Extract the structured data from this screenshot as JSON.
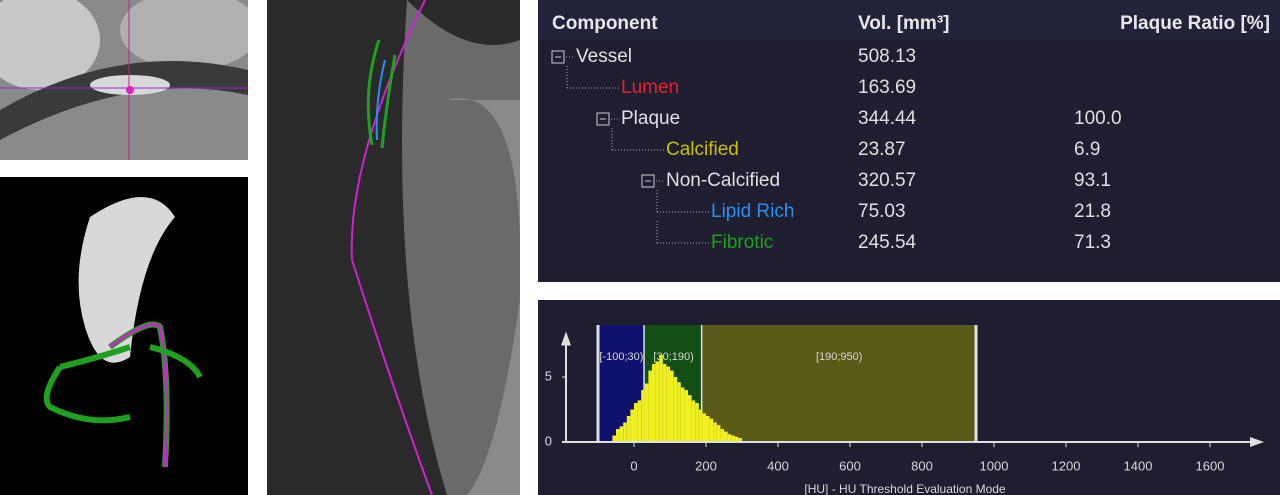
{
  "table": {
    "headers": [
      "Component",
      "Vol. [mm³]",
      "Plaque Ratio [%]"
    ],
    "rows": [
      {
        "name": "Vessel",
        "color": "#e0e0e0",
        "volume": "508.13"
      },
      {
        "name": "Lumen",
        "color": "#e8202a",
        "volume": "163.69"
      },
      {
        "name": "Plaque",
        "color": "#e0e0e0",
        "volume": "344.44",
        "ratio": "100.0"
      },
      {
        "name": "Calcified",
        "color": "#c8c000",
        "volume": "23.87",
        "ratio": "6.9"
      },
      {
        "name": "Non-Calcified",
        "color": "#e0e0e0",
        "volume": "320.57",
        "ratio": "93.1"
      },
      {
        "name": "Lipid Rich",
        "color": "#2a8ef0",
        "volume": "75.03",
        "ratio": "21.8"
      },
      {
        "name": "Fibrotic",
        "color": "#1fa020",
        "volume": "245.54",
        "ratio": "71.3"
      }
    ]
  },
  "chart_data": {
    "type": "histogram",
    "x_label": "[HU] - HU Threshold Evaluation Mode",
    "xlim": [
      -200,
      1750
    ],
    "ylim": [
      0,
      8.5
    ],
    "xticks": [
      0,
      200,
      400,
      600,
      800,
      1000,
      1200,
      1400,
      1600
    ],
    "yticks": [
      0,
      5
    ],
    "regions": [
      {
        "label": "[-100;30)",
        "from": -100,
        "to": 30,
        "color": "#10106e"
      },
      {
        "label": "[30;190)",
        "from": 30,
        "to": 190,
        "color": "#124d16"
      },
      {
        "label": "[190;950)",
        "from": 190,
        "to": 950,
        "color": "#5a5a18"
      }
    ],
    "color": "#f0f020",
    "bins": [
      -60,
      -50,
      -40,
      -30,
      -20,
      -10,
      0,
      10,
      20,
      30,
      40,
      50,
      60,
      70,
      80,
      90,
      100,
      110,
      120,
      130,
      140,
      150,
      160,
      170,
      180,
      190,
      200,
      210,
      220,
      230,
      240,
      250,
      260,
      270,
      280,
      290,
      300
    ],
    "values": [
      0.5,
      1,
      1.2,
      1.5,
      2,
      2.5,
      3,
      3.2,
      4,
      4.5,
      5.5,
      6,
      6.2,
      6.7,
      6,
      5.8,
      5.5,
      5,
      4.6,
      4.2,
      4,
      3.6,
      3.2,
      3,
      2.5,
      2.2,
      2,
      1.8,
      1.5,
      1.3,
      1,
      0.8,
      0.6,
      0.5,
      0.4,
      0.3
    ]
  }
}
